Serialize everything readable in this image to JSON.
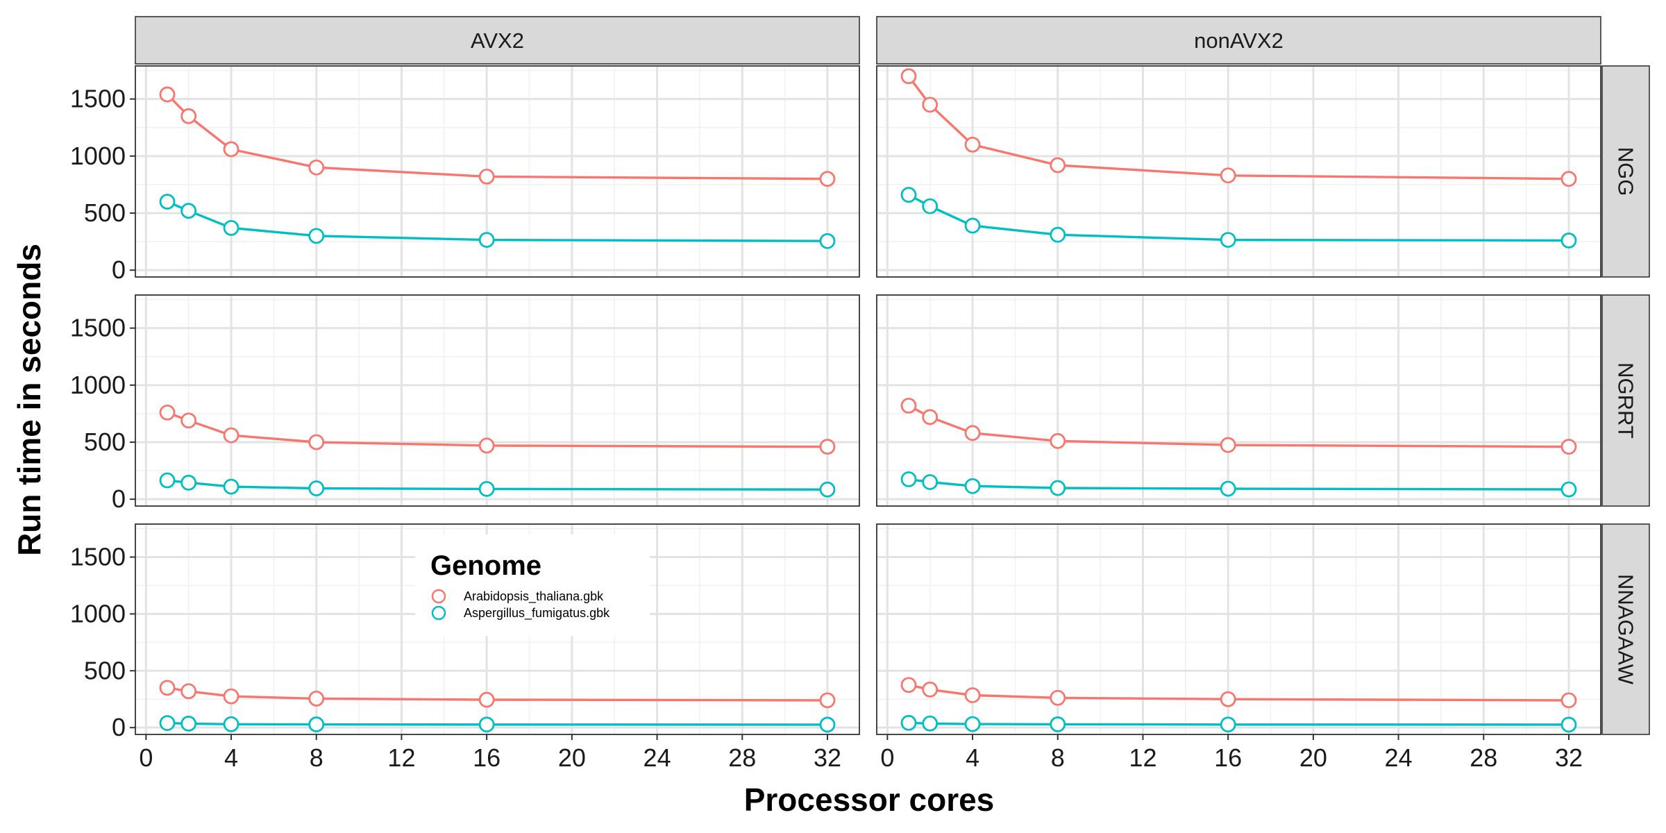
{
  "chart_data": {
    "type": "line",
    "title": "",
    "xlabel": "Processor cores",
    "ylabel": "Run time in seconds",
    "xlim": [
      -0.5,
      33.5
    ],
    "ylim": [
      -60,
      1790
    ],
    "x_ticks": [
      0,
      4,
      8,
      12,
      16,
      20,
      24,
      28,
      32
    ],
    "y_ticks": [
      0,
      500,
      1000,
      1500
    ],
    "grid": true,
    "columns": [
      "AVX2",
      "nonAVX2"
    ],
    "rows": [
      "NGG",
      "NGRRT",
      "NNAGAAW"
    ],
    "legend": {
      "title": "Genome",
      "placement": "inside bottom-left panel, top-center",
      "entries": [
        "Arabidopsis_thaliana.gbk",
        "Aspergillus_fumigatus.gbk"
      ]
    },
    "colors": {
      "Arabidopsis_thaliana.gbk": "#F8766D",
      "Aspergillus_fumigatus.gbk": "#00BFC4"
    },
    "x": [
      1,
      2,
      4,
      8,
      16,
      32
    ],
    "panels": [
      {
        "column": "AVX2",
        "row": "NGG",
        "series": [
          {
            "name": "Arabidopsis_thaliana.gbk",
            "values": [
              1540,
              1350,
              1060,
              900,
              820,
              800
            ]
          },
          {
            "name": "Aspergillus_fumigatus.gbk",
            "values": [
              600,
              520,
              370,
              300,
              265,
              255
            ]
          }
        ]
      },
      {
        "column": "nonAVX2",
        "row": "NGG",
        "series": [
          {
            "name": "Arabidopsis_thaliana.gbk",
            "values": [
              1700,
              1450,
              1100,
              920,
              830,
              800
            ]
          },
          {
            "name": "Aspergillus_fumigatus.gbk",
            "values": [
              660,
              560,
              390,
              310,
              265,
              260
            ]
          }
        ]
      },
      {
        "column": "AVX2",
        "row": "NGRRT",
        "series": [
          {
            "name": "Arabidopsis_thaliana.gbk",
            "values": [
              760,
              690,
              560,
              500,
              470,
              460
            ]
          },
          {
            "name": "Aspergillus_fumigatus.gbk",
            "values": [
              165,
              145,
              110,
              95,
              90,
              85
            ]
          }
        ]
      },
      {
        "column": "nonAVX2",
        "row": "NGRRT",
        "series": [
          {
            "name": "Arabidopsis_thaliana.gbk",
            "values": [
              820,
              720,
              580,
              510,
              475,
              460
            ]
          },
          {
            "name": "Aspergillus_fumigatus.gbk",
            "values": [
              175,
              150,
              115,
              98,
              92,
              86
            ]
          }
        ]
      },
      {
        "column": "AVX2",
        "row": "NNAGAAW",
        "series": [
          {
            "name": "Arabidopsis_thaliana.gbk",
            "values": [
              350,
              320,
              275,
              255,
              245,
              240
            ]
          },
          {
            "name": "Aspergillus_fumigatus.gbk",
            "values": [
              40,
              35,
              30,
              28,
              27,
              26
            ]
          }
        ]
      },
      {
        "column": "nonAVX2",
        "row": "NNAGAAW",
        "series": [
          {
            "name": "Arabidopsis_thaliana.gbk",
            "values": [
              375,
              335,
              285,
              262,
              250,
              240
            ]
          },
          {
            "name": "Aspergillus_fumigatus.gbk",
            "values": [
              42,
              36,
              31,
              29,
              27,
              26
            ]
          }
        ]
      }
    ]
  }
}
